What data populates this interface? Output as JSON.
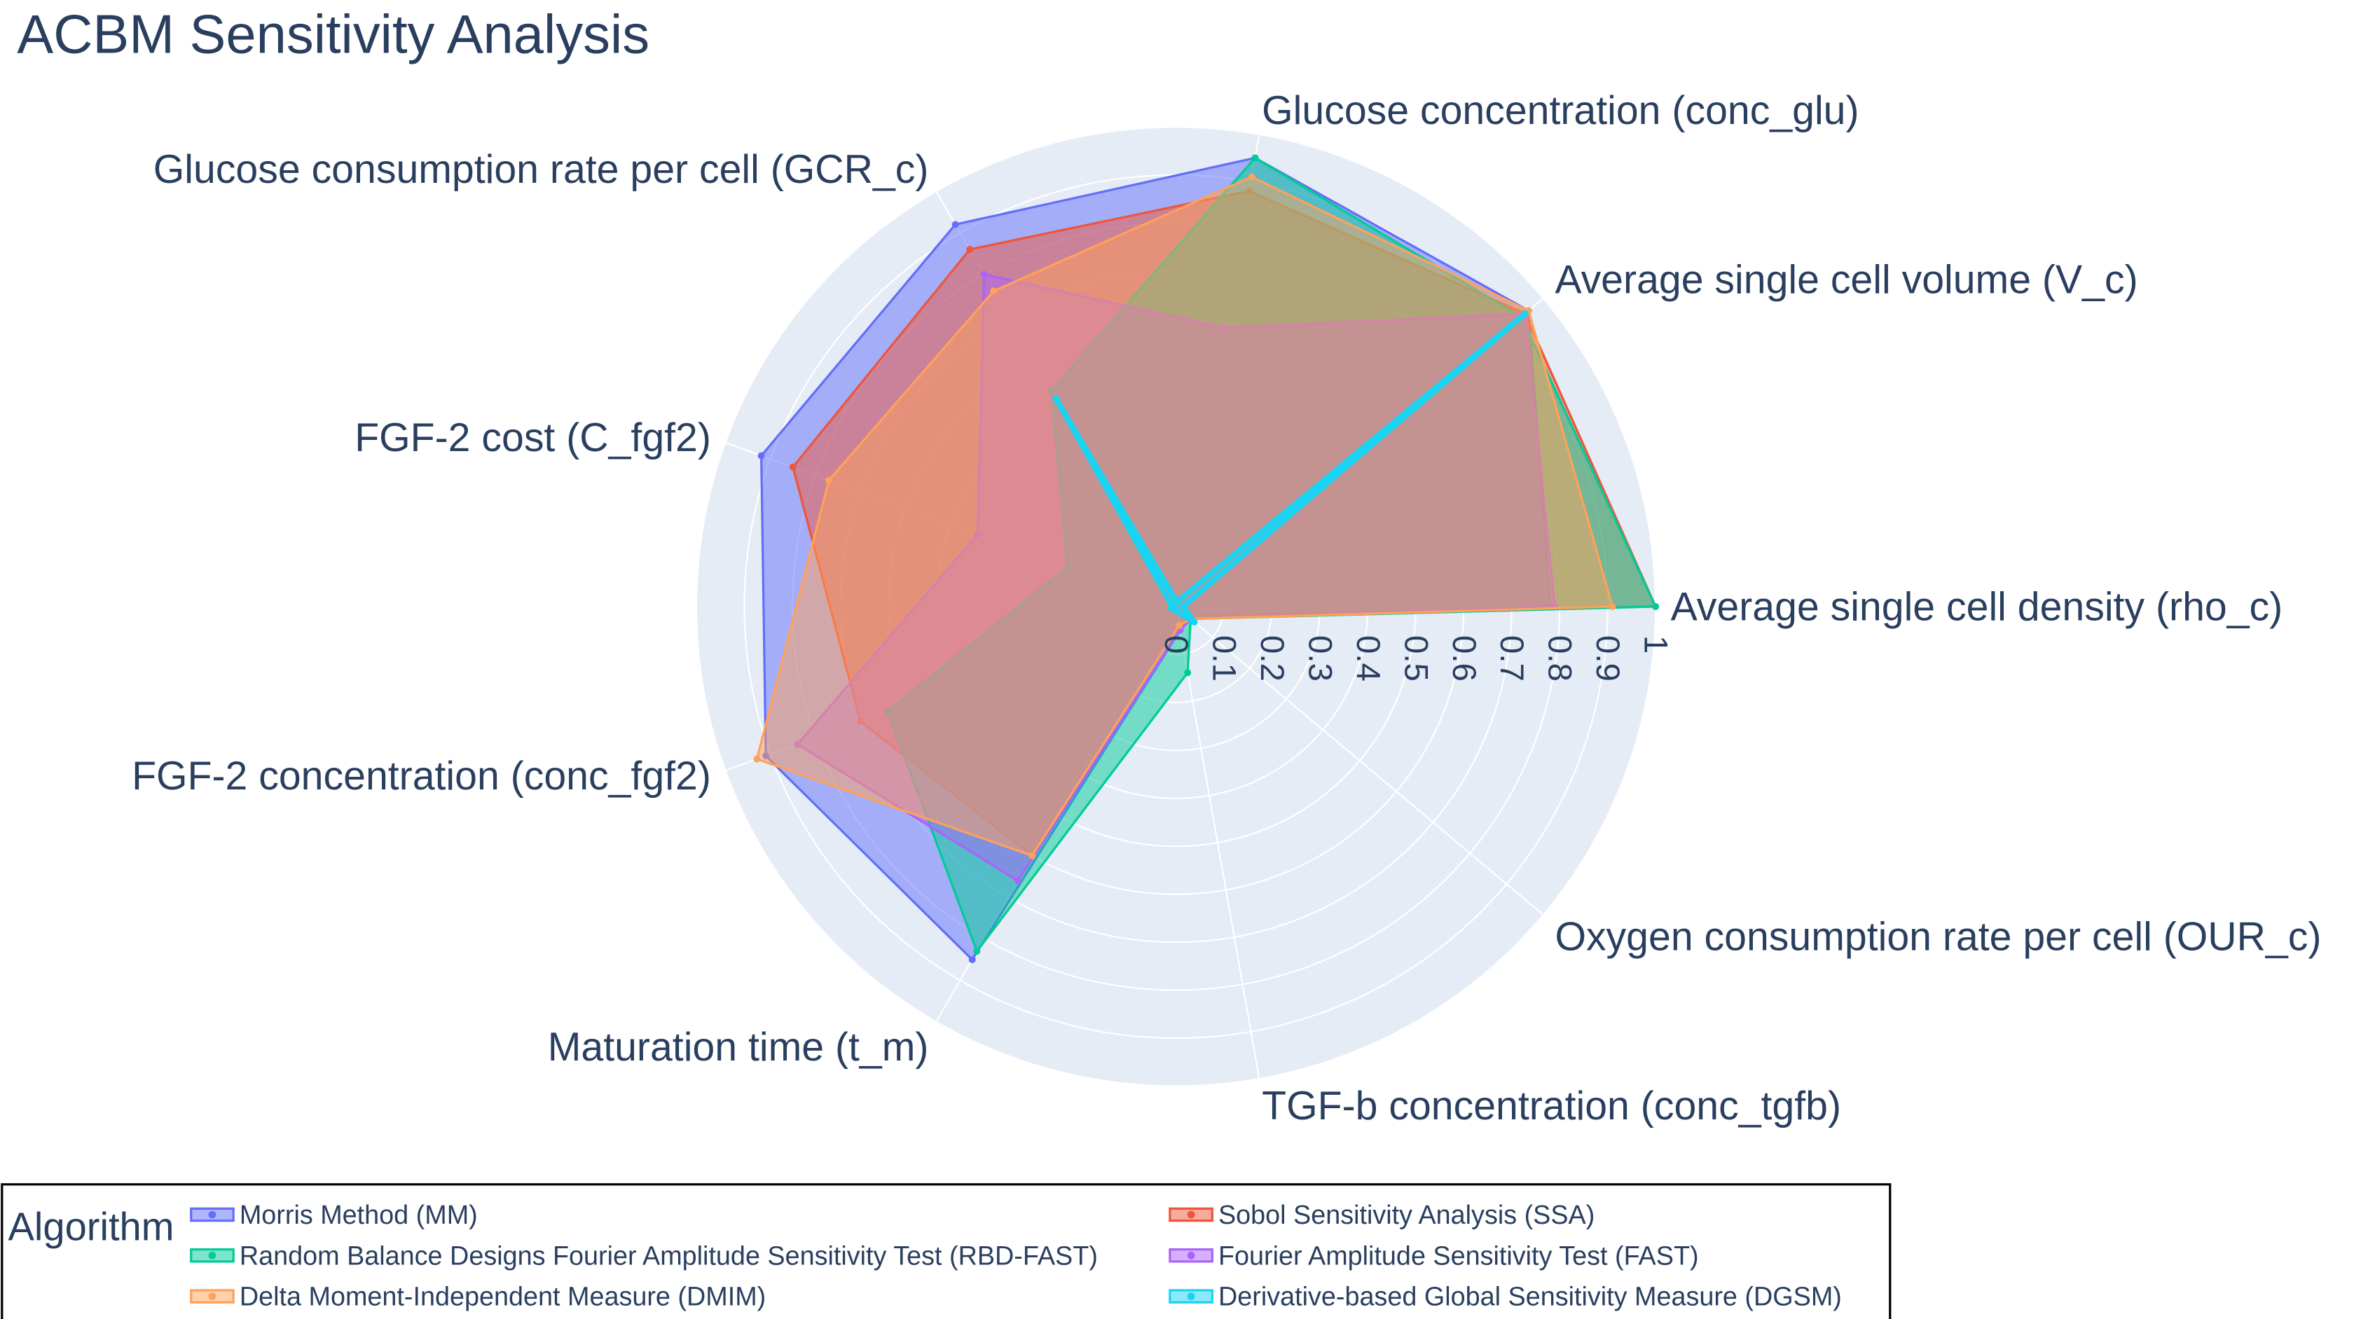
{
  "chart_data": {
    "type": "radar",
    "title": "ACBM Sensitivity Analysis",
    "axes": [
      "Average single cell density (rho_c)",
      "Average single cell volume (V_c)",
      "Glucose concentration (conc_glu)",
      "Glucose consumption rate per cell (GCR_c)",
      "FGF-2 cost (C_fgf2)",
      "FGF-2 concentration (conc_fgf2)",
      "Maturation time (t_m)",
      "TGF-b concentration (conc_tgfb)",
      "Oxygen consumption rate per cell (OUR_c)"
    ],
    "radial_range": [
      0,
      1
    ],
    "radial_ticks": [
      "0",
      "0.1",
      "0.2",
      "0.3",
      "0.4",
      "0.5",
      "0.6",
      "0.7",
      "0.8",
      "0.9",
      "1"
    ],
    "legend_title": "Algorithm",
    "legend_position": "bottom",
    "series": [
      {
        "name": "Morris Method (MM)",
        "color": "#636efa",
        "values": [
          0.78,
          0.96,
          0.95,
          0.92,
          0.92,
          0.91,
          0.85,
          0.05,
          0.04
        ]
      },
      {
        "name": "Sobol Sensitivity Analysis (SSA)",
        "color": "#ef553b",
        "values": [
          1.0,
          0.95,
          0.88,
          0.86,
          0.85,
          0.7,
          0.6,
          0.04,
          0.03
        ]
      },
      {
        "name": "Random Balance Designs Fourier Amplitude Sensitivity Test (RBD-FAST)",
        "color": "#00cc96",
        "values": [
          1.0,
          0.94,
          0.95,
          0.52,
          0.24,
          0.64,
          0.83,
          0.14,
          0.04
        ]
      },
      {
        "name": "Fourier Amplitude Sensitivity Test (FAST)",
        "color": "#ab63fa",
        "values": [
          0.79,
          0.95,
          0.59,
          0.8,
          0.44,
          0.84,
          0.66,
          0.05,
          0.04
        ]
      },
      {
        "name": "Delta Moment-Independent Measure (DMIM)",
        "color": "#ffa15a",
        "values": [
          0.91,
          0.96,
          0.91,
          0.76,
          0.77,
          0.93,
          0.6,
          0.04,
          0.04
        ]
      },
      {
        "name": "Derivative-based Global Sensitivity Measure (DGSM)",
        "color": "#19d3f3",
        "values": [
          0.015,
          0.95,
          0.01,
          0.5,
          0.01,
          0.01,
          0.005,
          0.01,
          0.05
        ]
      }
    ]
  }
}
